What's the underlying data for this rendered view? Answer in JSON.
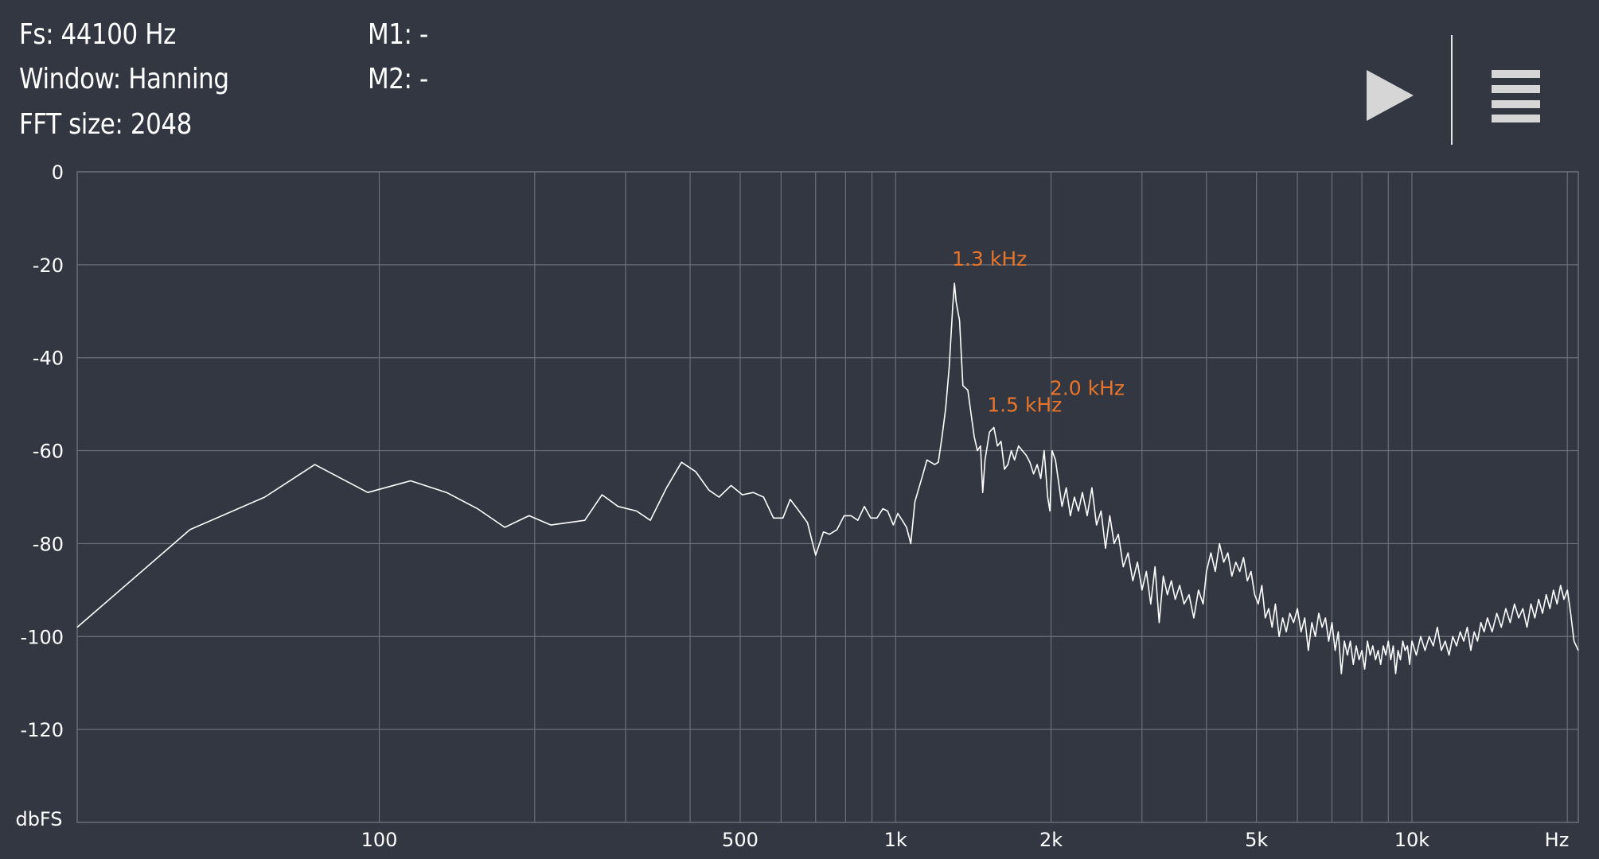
{
  "header": {
    "fs": "Fs: 44100 Hz",
    "window": "Window: Hanning",
    "fft_size": "FFT size: 2048",
    "m1": "M1: -",
    "m2": "M2: -"
  },
  "controls": {
    "play_icon": "play-icon",
    "menu_icon": "hamburger-menu-icon"
  },
  "colors": {
    "background": "#323741",
    "grid": "#6b6f78",
    "trace": "#ffffff",
    "peak_label": "#e8752a"
  },
  "chart_data": {
    "type": "line",
    "x_scale": "log",
    "xlim": [
      26,
      21000
    ],
    "ylim": [
      -140,
      0
    ],
    "ylabel": "dbFS",
    "x_unit_label": "Hz",
    "y_ticks": [
      {
        "value": 0,
        "label": "0"
      },
      {
        "value": -20,
        "label": "-20"
      },
      {
        "value": -40,
        "label": "-40"
      },
      {
        "value": -60,
        "label": "-60"
      },
      {
        "value": -80,
        "label": "-80"
      },
      {
        "value": -100,
        "label": "-100"
      },
      {
        "value": -120,
        "label": "-120"
      }
    ],
    "x_ticks": [
      {
        "value": 100,
        "label": "100"
      },
      {
        "value": 500,
        "label": "500"
      },
      {
        "value": 1000,
        "label": "1k"
      },
      {
        "value": 2000,
        "label": "2k"
      },
      {
        "value": 5000,
        "label": "5k"
      },
      {
        "value": 10000,
        "label": "10k"
      }
    ],
    "x_gridlines": [
      100,
      200,
      300,
      400,
      500,
      600,
      700,
      800,
      900,
      1000,
      2000,
      3000,
      4000,
      5000,
      6000,
      7000,
      8000,
      9000,
      10000,
      20000
    ],
    "peaks": [
      {
        "freq": 1300,
        "db": -24,
        "label": "1.3  kHz"
      },
      {
        "freq": 1520,
        "db": -55,
        "label": "1.5  kHz"
      },
      {
        "freq": 2010,
        "db": -60,
        "label": "2.0  kHz"
      }
    ],
    "series": [
      {
        "points": [
          [
            26,
            -98
          ],
          [
            43,
            -77
          ],
          [
            60,
            -70
          ],
          [
            75,
            -63
          ],
          [
            95,
            -69
          ],
          [
            115,
            -66.5
          ],
          [
            135,
            -69
          ],
          [
            155,
            -72.5
          ],
          [
            175,
            -76.5
          ],
          [
            195,
            -74
          ],
          [
            215,
            -76
          ],
          [
            250,
            -75
          ],
          [
            270,
            -69.5
          ],
          [
            290,
            -72
          ],
          [
            315,
            -73
          ],
          [
            335,
            -75
          ],
          [
            360,
            -68
          ],
          [
            385,
            -62.5
          ],
          [
            410,
            -64.5
          ],
          [
            435,
            -68.5
          ],
          [
            455,
            -70
          ],
          [
            480,
            -67.5
          ],
          [
            505,
            -69.5
          ],
          [
            530,
            -69
          ],
          [
            555,
            -70
          ],
          [
            580,
            -74.5
          ],
          [
            605,
            -74.5
          ],
          [
            625,
            -70.5
          ],
          [
            650,
            -73
          ],
          [
            675,
            -75.5
          ],
          [
            700,
            -82.5
          ],
          [
            725,
            -77.5
          ],
          [
            745,
            -78
          ],
          [
            770,
            -77
          ],
          [
            795,
            -74
          ],
          [
            820,
            -74
          ],
          [
            845,
            -75
          ],
          [
            870,
            -72
          ],
          [
            895,
            -74.5
          ],
          [
            920,
            -74.5
          ],
          [
            945,
            -72.5
          ],
          [
            965,
            -73
          ],
          [
            990,
            -76
          ],
          [
            1010,
            -73.5
          ],
          [
            1030,
            -75
          ],
          [
            1050,
            -76.5
          ],
          [
            1070,
            -80
          ],
          [
            1090,
            -71
          ],
          [
            1110,
            -68
          ],
          [
            1130,
            -65
          ],
          [
            1150,
            -62
          ],
          [
            1170,
            -62.5
          ],
          [
            1190,
            -63
          ],
          [
            1210,
            -62.5
          ],
          [
            1230,
            -57
          ],
          [
            1250,
            -51
          ],
          [
            1270,
            -42
          ],
          [
            1290,
            -29
          ],
          [
            1300,
            -24
          ],
          [
            1310,
            -28
          ],
          [
            1330,
            -32
          ],
          [
            1350,
            -46
          ],
          [
            1380,
            -47
          ],
          [
            1400,
            -52
          ],
          [
            1420,
            -57
          ],
          [
            1440,
            -60
          ],
          [
            1460,
            -59
          ],
          [
            1475,
            -69
          ],
          [
            1490,
            -62
          ],
          [
            1520,
            -56
          ],
          [
            1550,
            -55
          ],
          [
            1575,
            -59
          ],
          [
            1600,
            -58
          ],
          [
            1625,
            -64
          ],
          [
            1650,
            -63
          ],
          [
            1675,
            -60
          ],
          [
            1700,
            -62
          ],
          [
            1730,
            -59
          ],
          [
            1760,
            -60
          ],
          [
            1790,
            -61
          ],
          [
            1820,
            -62.5
          ],
          [
            1850,
            -65
          ],
          [
            1880,
            -63
          ],
          [
            1910,
            -66
          ],
          [
            1940,
            -60
          ],
          [
            1970,
            -70
          ],
          [
            1990,
            -73
          ],
          [
            2010,
            -60
          ],
          [
            2040,
            -62
          ],
          [
            2070,
            -67
          ],
          [
            2100,
            -72
          ],
          [
            2140,
            -68
          ],
          [
            2180,
            -74
          ],
          [
            2220,
            -70
          ],
          [
            2260,
            -73
          ],
          [
            2300,
            -69
          ],
          [
            2350,
            -74
          ],
          [
            2400,
            -68
          ],
          [
            2450,
            -76
          ],
          [
            2500,
            -73
          ],
          [
            2550,
            -81
          ],
          [
            2600,
            -74
          ],
          [
            2650,
            -80
          ],
          [
            2700,
            -78
          ],
          [
            2760,
            -85
          ],
          [
            2820,
            -82
          ],
          [
            2880,
            -88
          ],
          [
            2940,
            -84
          ],
          [
            3000,
            -90
          ],
          [
            3060,
            -86
          ],
          [
            3120,
            -93
          ],
          [
            3180,
            -85
          ],
          [
            3240,
            -97
          ],
          [
            3300,
            -87
          ],
          [
            3360,
            -91
          ],
          [
            3420,
            -88
          ],
          [
            3480,
            -92
          ],
          [
            3550,
            -89
          ],
          [
            3620,
            -93
          ],
          [
            3700,
            -91
          ],
          [
            3780,
            -96
          ],
          [
            3860,
            -90
          ],
          [
            3940,
            -93
          ],
          [
            4000,
            -86
          ],
          [
            4080,
            -82
          ],
          [
            4160,
            -86
          ],
          [
            4240,
            -80
          ],
          [
            4320,
            -84
          ],
          [
            4400,
            -82
          ],
          [
            4480,
            -87
          ],
          [
            4560,
            -84
          ],
          [
            4640,
            -86
          ],
          [
            4720,
            -83
          ],
          [
            4800,
            -88
          ],
          [
            4880,
            -86
          ],
          [
            4960,
            -91
          ],
          [
            5040,
            -93
          ],
          [
            5120,
            -89
          ],
          [
            5200,
            -96
          ],
          [
            5280,
            -94
          ],
          [
            5360,
            -98
          ],
          [
            5440,
            -93
          ],
          [
            5530,
            -100
          ],
          [
            5620,
            -96
          ],
          [
            5710,
            -99
          ],
          [
            5800,
            -95
          ],
          [
            5900,
            -97
          ],
          [
            6000,
            -94
          ],
          [
            6100,
            -99
          ],
          [
            6200,
            -96
          ],
          [
            6300,
            -103
          ],
          [
            6400,
            -97
          ],
          [
            6500,
            -100
          ],
          [
            6600,
            -95
          ],
          [
            6700,
            -98
          ],
          [
            6800,
            -96
          ],
          [
            6900,
            -101
          ],
          [
            7000,
            -97
          ],
          [
            7100,
            -103
          ],
          [
            7200,
            -99
          ],
          [
            7300,
            -108
          ],
          [
            7400,
            -101
          ],
          [
            7500,
            -104
          ],
          [
            7600,
            -101
          ],
          [
            7700,
            -106
          ],
          [
            7800,
            -102
          ],
          [
            7900,
            -105
          ],
          [
            8000,
            -103
          ],
          [
            8100,
            -107
          ],
          [
            8200,
            -101
          ],
          [
            8300,
            -104
          ],
          [
            8400,
            -102
          ],
          [
            8500,
            -105
          ],
          [
            8600,
            -103
          ],
          [
            8700,
            -106
          ],
          [
            8800,
            -102
          ],
          [
            8900,
            -104
          ],
          [
            9000,
            -101
          ],
          [
            9100,
            -105
          ],
          [
            9200,
            -102
          ],
          [
            9300,
            -108
          ],
          [
            9400,
            -103
          ],
          [
            9500,
            -105
          ],
          [
            9600,
            -101
          ],
          [
            9700,
            -103
          ],
          [
            9800,
            -102
          ],
          [
            9900,
            -106
          ],
          [
            10000,
            -101
          ],
          [
            10200,
            -104
          ],
          [
            10400,
            -100
          ],
          [
            10600,
            -103
          ],
          [
            10800,
            -100
          ],
          [
            11000,
            -102
          ],
          [
            11200,
            -98
          ],
          [
            11400,
            -103
          ],
          [
            11600,
            -101
          ],
          [
            11800,
            -104
          ],
          [
            12000,
            -100
          ],
          [
            12200,
            -102
          ],
          [
            12400,
            -99
          ],
          [
            12600,
            -101
          ],
          [
            12800,
            -98
          ],
          [
            13000,
            -103
          ],
          [
            13200,
            -99
          ],
          [
            13400,
            -101
          ],
          [
            13600,
            -97
          ],
          [
            13800,
            -99
          ],
          [
            14000,
            -96
          ],
          [
            14300,
            -99
          ],
          [
            14600,
            -95
          ],
          [
            14900,
            -98
          ],
          [
            15200,
            -94
          ],
          [
            15500,
            -97
          ],
          [
            15800,
            -93
          ],
          [
            16100,
            -96
          ],
          [
            16400,
            -94
          ],
          [
            16700,
            -98
          ],
          [
            17000,
            -93
          ],
          [
            17300,
            -96
          ],
          [
            17600,
            -92
          ],
          [
            17900,
            -95
          ],
          [
            18200,
            -91
          ],
          [
            18500,
            -94
          ],
          [
            18800,
            -90
          ],
          [
            19100,
            -93
          ],
          [
            19400,
            -89
          ],
          [
            19700,
            -92
          ],
          [
            20000,
            -90
          ],
          [
            20300,
            -95
          ],
          [
            20600,
            -101
          ],
          [
            21000,
            -103
          ]
        ]
      }
    ]
  }
}
